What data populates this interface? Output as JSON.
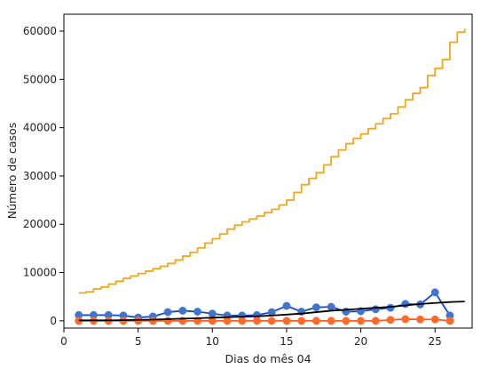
{
  "chart_data": {
    "type": "line",
    "title": "",
    "xlabel": "Dias do mês 04",
    "ylabel": "Número de casos",
    "xlim": [
      0,
      27.5
    ],
    "ylim": [
      -1500,
      63500
    ],
    "xticks": [
      0,
      5,
      10,
      15,
      20,
      25
    ],
    "yticks": [
      0,
      10000,
      20000,
      30000,
      40000,
      50000,
      60000
    ],
    "grid": false,
    "legend": "none",
    "series": [
      {
        "color": "#f0a81c",
        "style": "step",
        "points": [
          [
            1,
            5800
          ],
          [
            1.5,
            6000
          ],
          [
            2,
            6600
          ],
          [
            2.5,
            7000
          ],
          [
            3,
            7600
          ],
          [
            3.5,
            8200
          ],
          [
            4,
            8800
          ],
          [
            4.5,
            9300
          ],
          [
            5,
            9800
          ],
          [
            5.5,
            10300
          ],
          [
            6,
            10800
          ],
          [
            6.5,
            11300
          ],
          [
            7,
            11900
          ],
          [
            7.5,
            12600
          ],
          [
            8,
            13400
          ],
          [
            8.5,
            14200
          ],
          [
            9,
            15100
          ],
          [
            9.5,
            16100
          ],
          [
            10,
            17000
          ],
          [
            10.5,
            18000
          ],
          [
            11,
            19000
          ],
          [
            11.5,
            19800
          ],
          [
            12,
            20500
          ],
          [
            12.5,
            21100
          ],
          [
            13,
            21700
          ],
          [
            13.5,
            22400
          ],
          [
            14,
            23100
          ],
          [
            14.5,
            24000
          ],
          [
            15,
            25000
          ],
          [
            15.5,
            26600
          ],
          [
            16,
            28200
          ],
          [
            16.5,
            29500
          ],
          [
            17,
            30700
          ],
          [
            17.5,
            32300
          ],
          [
            18,
            34000
          ],
          [
            18.5,
            35400
          ],
          [
            19,
            36700
          ],
          [
            19.5,
            37800
          ],
          [
            20,
            38700
          ],
          [
            20.5,
            39800
          ],
          [
            21,
            40800
          ],
          [
            21.5,
            41900
          ],
          [
            22,
            42900
          ],
          [
            22.5,
            44300
          ],
          [
            23,
            45800
          ],
          [
            23.5,
            47100
          ],
          [
            24,
            48300
          ],
          [
            24.5,
            50800
          ],
          [
            25,
            52300
          ],
          [
            25.5,
            54100
          ],
          [
            26,
            57700
          ],
          [
            26.5,
            59800
          ],
          [
            27,
            60500
          ]
        ]
      },
      {
        "color": "#1446d6",
        "style": "line-marker",
        "marker_color": "#3f74cf",
        "points": [
          [
            1,
            1200
          ],
          [
            2,
            1200
          ],
          [
            3,
            1200
          ],
          [
            4,
            1100
          ],
          [
            5,
            700
          ],
          [
            6,
            900
          ],
          [
            7,
            1800
          ],
          [
            8,
            2100
          ],
          [
            9,
            1900
          ],
          [
            10,
            1500
          ],
          [
            11,
            1100
          ],
          [
            12,
            1100
          ],
          [
            13,
            1200
          ],
          [
            14,
            1800
          ],
          [
            15,
            3100
          ],
          [
            16,
            1900
          ],
          [
            17,
            2800
          ],
          [
            18,
            2900
          ],
          [
            19,
            1900
          ],
          [
            20,
            2000
          ],
          [
            21,
            2400
          ],
          [
            22,
            2700
          ],
          [
            23,
            3500
          ],
          [
            24,
            3400
          ],
          [
            25,
            5900
          ],
          [
            26,
            1100
          ]
        ]
      },
      {
        "color": "#ff5d1f",
        "style": "line-marker",
        "marker_color": "#ff6a2a",
        "points": [
          [
            1,
            0
          ],
          [
            2,
            0
          ],
          [
            3,
            0
          ],
          [
            4,
            0
          ],
          [
            5,
            0
          ],
          [
            6,
            0
          ],
          [
            7,
            0
          ],
          [
            8,
            0
          ],
          [
            9,
            0
          ],
          [
            10,
            0
          ],
          [
            11,
            0
          ],
          [
            12,
            0
          ],
          [
            13,
            0
          ],
          [
            14,
            0
          ],
          [
            15,
            0
          ],
          [
            16,
            0
          ],
          [
            17,
            0
          ],
          [
            18,
            0
          ],
          [
            19,
            0
          ],
          [
            20,
            0
          ],
          [
            21,
            0
          ],
          [
            22,
            200
          ],
          [
            23,
            350
          ],
          [
            24,
            300
          ],
          [
            25,
            300
          ],
          [
            26,
            0
          ]
        ]
      },
      {
        "color": "#000000",
        "style": "line",
        "points": [
          [
            1,
            100
          ],
          [
            2,
            100
          ],
          [
            3,
            100
          ],
          [
            4,
            150
          ],
          [
            5,
            200
          ],
          [
            6,
            250
          ],
          [
            7,
            350
          ],
          [
            8,
            450
          ],
          [
            9,
            550
          ],
          [
            10,
            650
          ],
          [
            11,
            750
          ],
          [
            12,
            850
          ],
          [
            13,
            950
          ],
          [
            14,
            1100
          ],
          [
            15,
            1300
          ],
          [
            16,
            1500
          ],
          [
            17,
            1800
          ],
          [
            18,
            2100
          ],
          [
            19,
            2300
          ],
          [
            20,
            2500
          ],
          [
            21,
            2700
          ],
          [
            22,
            2900
          ],
          [
            23,
            3200
          ],
          [
            24,
            3500
          ],
          [
            25,
            3700
          ],
          [
            26,
            3900
          ],
          [
            27,
            4000
          ]
        ]
      }
    ]
  }
}
